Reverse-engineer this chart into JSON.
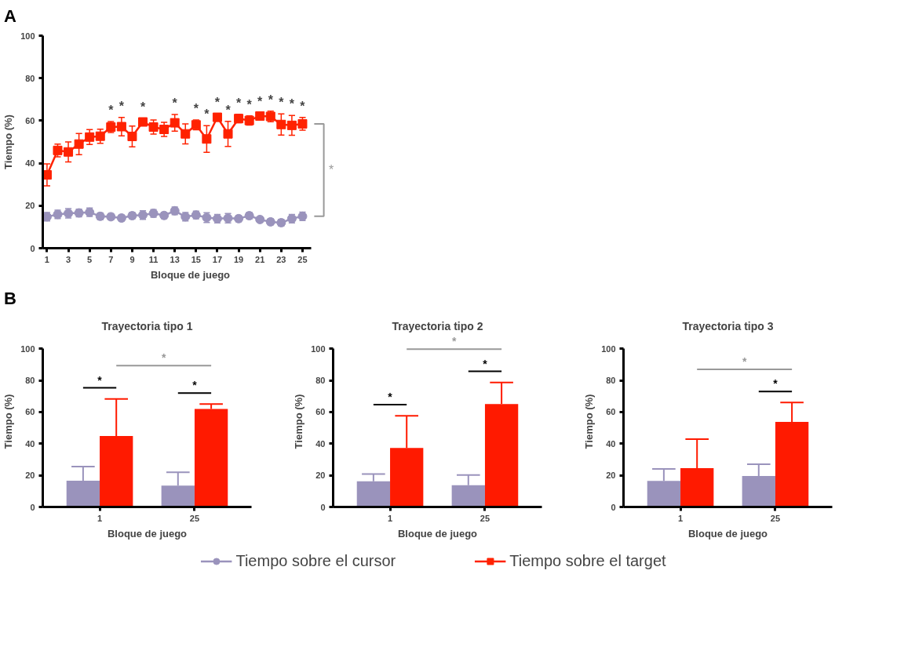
{
  "chart_data": [
    {
      "type": "line",
      "xlabel": "Bloque de juego",
      "ylabel": "Tiempo (%)",
      "x": [
        1,
        2,
        3,
        4,
        5,
        6,
        7,
        8,
        9,
        10,
        11,
        12,
        13,
        14,
        15,
        16,
        17,
        18,
        19,
        20,
        21,
        22,
        23,
        24,
        25
      ],
      "xlim": [
        0.6,
        25.8
      ],
      "xticks": [
        1,
        3,
        5,
        7,
        9,
        11,
        13,
        15,
        17,
        19,
        21,
        23,
        25
      ],
      "ylim": [
        0,
        100
      ],
      "yticks": [
        0,
        20,
        40,
        60,
        80,
        100
      ],
      "grid": false,
      "legend": "bottom",
      "annotations": [
        "A",
        "*",
        {
          "text": "*",
          "x": 7,
          "y": 57
        },
        {
          "text": "*",
          "x": 8,
          "y": 57.2
        },
        {
          "text": "*",
          "x": 10,
          "y": 59.4
        },
        {
          "text": "*",
          "x": 13,
          "y": 59
        },
        {
          "text": "*",
          "x": 15,
          "y": 58
        },
        {
          "text": "*",
          "x": 16,
          "y": 51.4
        },
        {
          "text": "*",
          "x": 17,
          "y": 61.6
        },
        {
          "text": "*",
          "x": 18,
          "y": 53.8
        },
        {
          "text": "*",
          "x": 19,
          "y": 61
        },
        {
          "text": "*",
          "x": 20,
          "y": 60.1
        },
        {
          "text": "*",
          "x": 21,
          "y": 62.2
        },
        {
          "text": "*",
          "x": 22,
          "y": 62
        },
        {
          "text": "*",
          "x": 23,
          "y": 58.2
        },
        {
          "text": "*",
          "x": 24,
          "y": 57.8
        },
        {
          "text": "*",
          "x": 25,
          "y": 58.5
        }
      ],
      "series": [
        {
          "name": "Tiempo sobre el cursor",
          "color": "#9a93bc",
          "marker": "circle",
          "values": [
            14.8,
            15.9,
            16.4,
            16.6,
            16.9,
            15,
            14.8,
            14.2,
            15.3,
            15.6,
            16.4,
            15.4,
            17.6,
            14.8,
            15.6,
            14.4,
            13.9,
            14.1,
            13.9,
            15.3,
            13.5,
            12.4,
            12,
            13.9,
            15
          ],
          "errors": [
            2,
            2,
            2.2,
            1.8,
            2,
            1.6,
            1.4,
            1.4,
            1.6,
            2,
            1.8,
            1.5,
            1.8,
            2,
            1.8,
            2.3,
            2,
            2.2,
            1.4,
            1.6,
            1.2,
            1.4,
            1.6,
            2,
            2
          ]
        },
        {
          "name": "Tiempo sobre el target",
          "color": "#ff2200",
          "marker": "square",
          "values": [
            34.5,
            46,
            45.3,
            49,
            52.3,
            52.7,
            57,
            57.2,
            52.6,
            59.4,
            57,
            55.9,
            59,
            53.8,
            58,
            51.4,
            61.6,
            53.8,
            61,
            60.1,
            62.2,
            62,
            58.2,
            57.8,
            58.5
          ],
          "errors": [
            5.2,
            3,
            4.7,
            5,
            3.5,
            3.3,
            2.6,
            4.3,
            4.9,
            1.5,
            3.3,
            3.3,
            3.9,
            4.7,
            2.3,
            6.3,
            1.8,
            5.9,
            2,
            2.2,
            1.5,
            2.5,
            5,
            4.7,
            3
          ]
        }
      ]
    },
    {
      "type": "bar",
      "title": "Trayectoria tipo 1",
      "xlabel": "Bloque de juego",
      "ylabel": "Tiempo (%)",
      "categories": [
        "1",
        "25"
      ],
      "ylim": [
        0,
        100
      ],
      "yticks": [
        0,
        20,
        40,
        60,
        80,
        100
      ],
      "grid": false,
      "annotations": [
        "B",
        "*",
        "*",
        "*"
      ],
      "series": [
        {
          "color": "#9a93bc",
          "values": [
            16.6,
            13.5
          ],
          "errors": [
            [
              16.6,
              25.5
            ],
            [
              13.5,
              21.9
            ]
          ]
        },
        {
          "color": "#ff1a00",
          "values": [
            44.8,
            61.9
          ],
          "errors": [
            [
              44.8,
              68.3
            ],
            [
              61.9,
              65
            ]
          ]
        }
      ]
    },
    {
      "type": "bar",
      "title": "Trayectoria tipo 2",
      "xlabel": "Bloque de juego",
      "ylabel": "Tiempo (%)",
      "categories": [
        "1",
        "25"
      ],
      "ylim": [
        0,
        100
      ],
      "yticks": [
        0,
        20,
        40,
        60,
        80,
        100
      ],
      "grid": false,
      "annotations": [
        "*",
        "*",
        "*"
      ],
      "series": [
        {
          "color": "#9a93bc",
          "values": [
            16.2,
            13.7
          ],
          "errors": [
            [
              16.2,
              20.8
            ],
            [
              13.7,
              20.2
            ]
          ]
        },
        {
          "color": "#ff1a00",
          "values": [
            37.3,
            65
          ],
          "errors": [
            [
              37.3,
              57.6
            ],
            [
              65,
              78.7
            ]
          ]
        }
      ]
    },
    {
      "type": "bar",
      "title": "Trayectoria tipo 3",
      "xlabel": "Bloque de juego",
      "ylabel": "Tiempo (%)",
      "categories": [
        "1",
        "25"
      ],
      "ylim": [
        0,
        100
      ],
      "yticks": [
        0,
        20,
        40,
        60,
        80,
        100
      ],
      "grid": false,
      "annotations": [
        "*",
        "*"
      ],
      "series": [
        {
          "color": "#9a93bc",
          "values": [
            16.5,
            19.6
          ],
          "errors": [
            [
              16.5,
              24
            ],
            [
              19.6,
              27
            ]
          ]
        },
        {
          "color": "#ff1a00",
          "values": [
            24.5,
            53.7
          ],
          "errors": [
            [
              24.5,
              42.8
            ],
            [
              53.7,
              66
            ]
          ]
        }
      ]
    }
  ]
}
